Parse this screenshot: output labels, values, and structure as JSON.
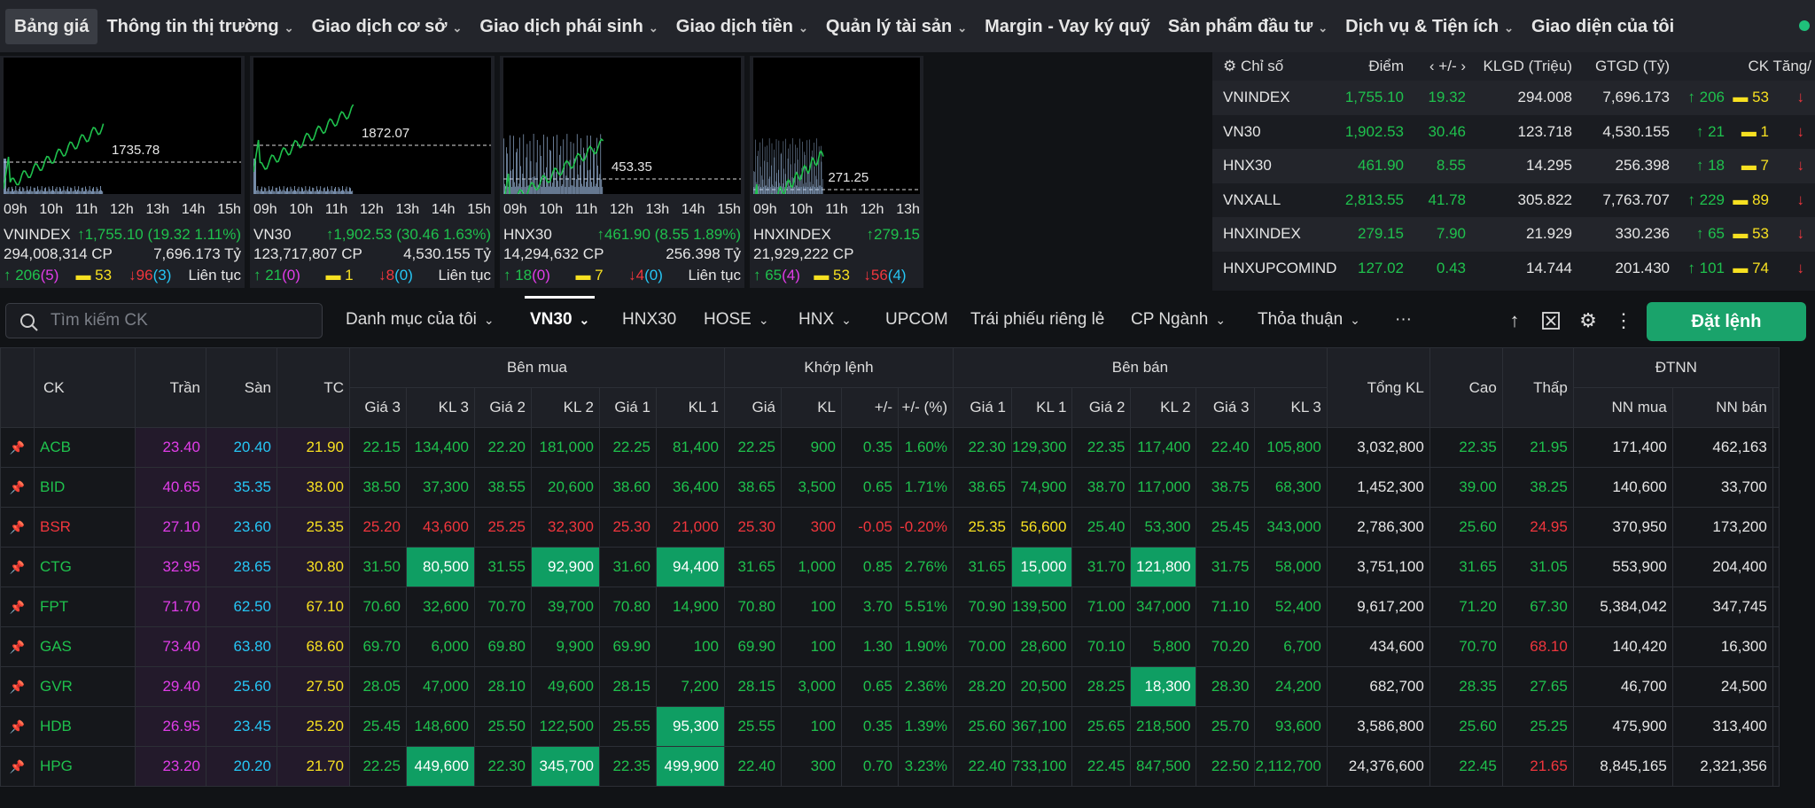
{
  "nav": {
    "items": [
      "Bảng giá",
      "Thông tin thị trường",
      "Giao dịch cơ sở",
      "Giao dịch phái sinh",
      "Giao dịch tiền",
      "Quản lý tài sản",
      "Margin - Vay ký quỹ",
      "Sản phẩm đầu tư",
      "Dịch vụ & Tiện ích",
      "Giao diện của tôi"
    ],
    "dropdown": [
      false,
      true,
      true,
      true,
      true,
      true,
      false,
      true,
      true,
      false
    ]
  },
  "panels": [
    {
      "ref": "1735.78",
      "times": [
        "09h",
        "10h",
        "11h",
        "12h",
        "13h",
        "14h",
        "15h"
      ],
      "name": "VNINDEX",
      "change": "↑1,755.10 (19.32 1.11%)",
      "vol": "294,008,314 CP",
      "value": "7,696.173 Tỷ",
      "up": "↑ 206",
      "upn": "(5)",
      "ref_n": "▬ 53",
      "down": "↓96",
      "downn": "(3)",
      "status": "Liên tục"
    },
    {
      "ref": "1872.07",
      "times": [
        "09h",
        "10h",
        "11h",
        "12h",
        "13h",
        "14h",
        "15h"
      ],
      "name": "VN30",
      "change": "↑1,902.53 (30.46 1.63%)",
      "vol": "123,717,807 CP",
      "value": "4,530.155 Tỷ",
      "up": "↑ 21",
      "upn": "(0)",
      "ref_n": "▬ 1",
      "down": "↓8",
      "downn": "(0)",
      "status": "Liên tục"
    },
    {
      "ref": "453.35",
      "times": [
        "09h",
        "10h",
        "11h",
        "12h",
        "13h",
        "14h",
        "15h"
      ],
      "name": "HNX30",
      "change": "↑461.90 (8.55 1.89%)",
      "vol": "14,294,632 CP",
      "value": "256.398 Tỷ",
      "up": "↑ 18",
      "upn": "(0)",
      "ref_n": "▬ 7",
      "down": "↓4",
      "downn": "(0)",
      "status": "Liên tục"
    },
    {
      "ref": "271.25",
      "times": [
        "09h",
        "10h",
        "11h",
        "12h",
        "13h"
      ],
      "name": "HNXINDEX",
      "change": "↑279.15",
      "vol": "21,929,222 CP",
      "value": "",
      "up": "↑ 65",
      "upn": "(4)",
      "ref_n": "▬ 53",
      "down": "↓56",
      "downn": "(4)",
      "status": ""
    }
  ],
  "index_table": {
    "headers": [
      "⚙ Chỉ số",
      "Điểm",
      "‹ +/- ›",
      "KLGD (Triệu)",
      "GTGD (Tỷ)",
      "CK Tăng/"
    ],
    "rows": [
      [
        "VNINDEX",
        "1,755.10",
        "19.32",
        "294.008",
        "7,696.173",
        "↑ 206",
        "▬ 53",
        "↓"
      ],
      [
        "VN30",
        "1,902.53",
        "30.46",
        "123.718",
        "4,530.155",
        "↑ 21",
        "▬ 1",
        "↓"
      ],
      [
        "HNX30",
        "461.90",
        "8.55",
        "14.295",
        "256.398",
        "↑ 18",
        "▬ 7",
        "↓"
      ],
      [
        "VNXALL",
        "2,813.55",
        "41.78",
        "305.822",
        "7,763.707",
        "↑ 229",
        "▬ 89",
        "↓"
      ],
      [
        "HNXINDEX",
        "279.15",
        "7.90",
        "21.929",
        "330.236",
        "↑ 65",
        "▬ 53",
        "↓"
      ],
      [
        "HNXUPCOMINDEX",
        "127.02",
        "0.43",
        "14.744",
        "201.430",
        "↑ 101",
        "▬ 74",
        "↓"
      ]
    ]
  },
  "toolbar": {
    "search_placeholder": "Tìm kiếm CK",
    "tabs": [
      "Danh mục của tôi",
      "VN30",
      "HNX30",
      "HOSE",
      "HNX",
      "UPCOM",
      "Trái phiếu riêng lẻ",
      "CP Ngành",
      "Thỏa thuận",
      "···"
    ],
    "tab_dropdown": [
      true,
      true,
      false,
      true,
      true,
      false,
      false,
      true,
      true,
      false
    ],
    "order_label": "Đặt lệnh"
  },
  "grid": {
    "groups": {
      "ck": "CK",
      "tran": "Trần",
      "san": "Sàn",
      "tc": "TC",
      "buy": "Bên mua",
      "match": "Khớp lệnh",
      "sell": "Bên bán",
      "total": "Tổng KL",
      "high": "Cao",
      "low": "Thấp",
      "foreign": "ĐTNN"
    },
    "sub": [
      "Giá 3",
      "KL 3",
      "Giá 2",
      "KL 2",
      "Giá 1",
      "KL 1",
      "Giá",
      "KL",
      "+/-",
      "+/- (%)",
      "Giá 1",
      "KL 1",
      "Giá 2",
      "KL 2",
      "Giá 3",
      "KL 3",
      "NN mua",
      "NN bán"
    ],
    "rows": [
      {
        "cells": [
          "ACB",
          "23.40",
          "20.40",
          "21.90",
          "22.15",
          "134,400",
          "22.20",
          "181,000",
          "22.25",
          "81,400",
          "22.25",
          "900",
          "0.35",
          "1.60%",
          "22.30",
          "129,300",
          "22.35",
          "117,400",
          "22.40",
          "105,800",
          "3,032,800",
          "22.35",
          "21.95",
          "171,400",
          "462,163"
        ],
        "colors": "gmcyggggggggggggggggwggww",
        "hl": []
      },
      {
        "cells": [
          "BID",
          "40.65",
          "35.35",
          "38.00",
          "38.50",
          "37,300",
          "38.55",
          "20,600",
          "38.60",
          "36,400",
          "38.65",
          "3,500",
          "0.65",
          "1.71%",
          "38.65",
          "74,900",
          "38.70",
          "117,000",
          "38.75",
          "68,300",
          "1,452,300",
          "39.00",
          "38.25",
          "140,600",
          "33,700"
        ],
        "colors": "gmcyggggggggggggggggwggww",
        "hl": []
      },
      {
        "cells": [
          "BSR",
          "27.10",
          "23.60",
          "25.35",
          "25.20",
          "43,600",
          "25.25",
          "32,300",
          "25.30",
          "21,000",
          "25.30",
          "300",
          "-0.05",
          "-0.20%",
          "25.35",
          "56,600",
          "25.40",
          "53,300",
          "25.45",
          "343,000",
          "2,786,300",
          "25.60",
          "24.95",
          "370,950",
          "173,200"
        ],
        "colors": "rmcyrrrrrrrrrryyggggwgrww",
        "hl": []
      },
      {
        "cells": [
          "CTG",
          "32.95",
          "28.65",
          "30.80",
          "31.50",
          "80,500",
          "31.55",
          "92,900",
          "31.60",
          "94,400",
          "31.65",
          "1,000",
          "0.85",
          "2.76%",
          "31.65",
          "15,000",
          "31.70",
          "121,800",
          "31.75",
          "58,000",
          "3,751,100",
          "31.65",
          "31.05",
          "553,900",
          "204,400"
        ],
        "colors": "gmcyggggggggggggggggwggww",
        "hl": [
          5,
          7,
          9,
          15,
          17
        ]
      },
      {
        "cells": [
          "FPT",
          "71.70",
          "62.50",
          "67.10",
          "70.60",
          "32,600",
          "70.70",
          "39,700",
          "70.80",
          "14,900",
          "70.80",
          "100",
          "3.70",
          "5.51%",
          "70.90",
          "139,500",
          "71.00",
          "347,000",
          "71.10",
          "52,400",
          "9,617,200",
          "71.20",
          "67.30",
          "5,384,042",
          "347,745"
        ],
        "colors": "gmcyggggggggggggggggwggww",
        "hl": []
      },
      {
        "cells": [
          "GAS",
          "73.40",
          "63.80",
          "68.60",
          "69.70",
          "6,000",
          "69.80",
          "9,900",
          "69.90",
          "100",
          "69.90",
          "100",
          "1.30",
          "1.90%",
          "70.00",
          "28,600",
          "70.10",
          "5,800",
          "70.20",
          "6,700",
          "434,600",
          "70.70",
          "68.10",
          "140,420",
          "16,300"
        ],
        "colors": "gmcyggggggggggggggggwgrww",
        "hl": []
      },
      {
        "cells": [
          "GVR",
          "29.40",
          "25.60",
          "27.50",
          "28.05",
          "47,000",
          "28.10",
          "49,600",
          "28.15",
          "7,200",
          "28.15",
          "3,000",
          "0.65",
          "2.36%",
          "28.20",
          "20,500",
          "28.25",
          "18,300",
          "28.30",
          "24,200",
          "682,700",
          "28.35",
          "27.65",
          "46,700",
          "24,500"
        ],
        "colors": "gmcyggggggggggggggggwggww",
        "hl": [
          17
        ]
      },
      {
        "cells": [
          "HDB",
          "26.95",
          "23.45",
          "25.20",
          "25.45",
          "148,600",
          "25.50",
          "122,500",
          "25.55",
          "95,300",
          "25.55",
          "100",
          "0.35",
          "1.39%",
          "25.60",
          "367,100",
          "25.65",
          "218,500",
          "25.70",
          "93,600",
          "3,586,800",
          "25.60",
          "25.25",
          "475,900",
          "313,400"
        ],
        "colors": "gmcyggggggggggggggggwggww",
        "hl": [
          9
        ]
      },
      {
        "cells": [
          "HPG",
          "23.20",
          "20.20",
          "21.70",
          "22.25",
          "449,600",
          "22.30",
          "345,700",
          "22.35",
          "499,900",
          "22.40",
          "300",
          "0.70",
          "3.23%",
          "22.40",
          "733,100",
          "22.45",
          "847,500",
          "22.50",
          "2,112,700",
          "24,376,600",
          "22.45",
          "21.65",
          "8,845,165",
          "2,321,356"
        ],
        "colors": "gmcyggggggggggggggggwgrww",
        "hl": [
          5,
          7,
          9
        ]
      }
    ]
  }
}
